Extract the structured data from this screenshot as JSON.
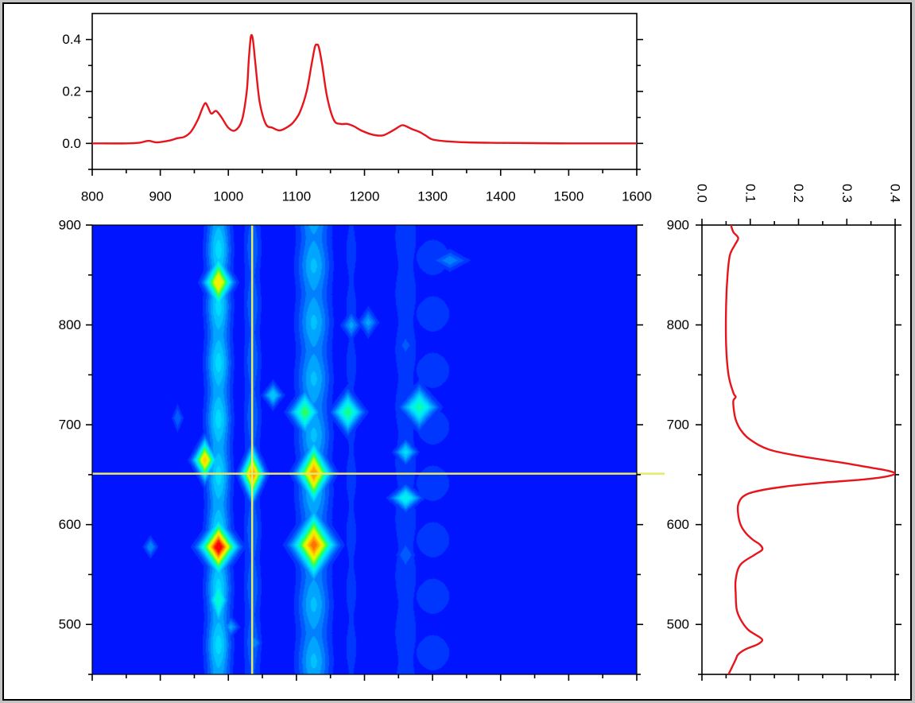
{
  "colors": {
    "trace": "#e8141b",
    "crosshair": "#e8e86a",
    "map_background": "#0014ff",
    "page_background": "#c3c3c3"
  },
  "chart_data": [
    {
      "id": "top-spectrum",
      "type": "line",
      "title": "",
      "xlabel": "",
      "ylabel": "",
      "xlim": [
        800,
        1600
      ],
      "ylim": [
        -0.1,
        0.5
      ],
      "x_ticks": [
        "800",
        "900",
        "1000",
        "1100",
        "1200",
        "1300",
        "1400",
        "1500",
        "1600"
      ],
      "y_ticks": [
        "0.0",
        "0.2",
        "0.4"
      ],
      "series": [
        {
          "x": [
            800,
            850,
            870,
            883,
            895,
            915,
            925,
            935,
            945,
            955,
            961,
            966,
            970,
            975,
            982,
            990,
            1000,
            1010,
            1020,
            1027,
            1030,
            1033,
            1036,
            1040,
            1046,
            1055,
            1065,
            1075,
            1085,
            1095,
            1105,
            1115,
            1122,
            1127,
            1130,
            1133,
            1138,
            1145,
            1155,
            1165,
            1175,
            1185,
            1195,
            1210,
            1225,
            1235,
            1245,
            1255,
            1262,
            1270,
            1280,
            1290,
            1300,
            1320,
            1350,
            1400,
            1450,
            1500,
            1600
          ],
          "y": [
            0.0,
            0.0,
            0.003,
            0.01,
            0.004,
            0.012,
            0.02,
            0.025,
            0.045,
            0.09,
            0.13,
            0.155,
            0.14,
            0.115,
            0.125,
            0.1,
            0.06,
            0.05,
            0.09,
            0.2,
            0.32,
            0.41,
            0.4,
            0.3,
            0.16,
            0.075,
            0.06,
            0.05,
            0.06,
            0.08,
            0.12,
            0.2,
            0.3,
            0.37,
            0.38,
            0.37,
            0.3,
            0.18,
            0.09,
            0.075,
            0.075,
            0.065,
            0.05,
            0.035,
            0.03,
            0.04,
            0.055,
            0.07,
            0.065,
            0.055,
            0.045,
            0.03,
            0.015,
            0.008,
            0.004,
            0.002,
            0.001,
            0.0,
            0.0
          ]
        }
      ]
    },
    {
      "id": "side-spectrum",
      "type": "line",
      "title": "",
      "xlabel": "",
      "ylabel": "",
      "xlim": [
        0.0,
        0.4
      ],
      "ylim": [
        450,
        900
      ],
      "x_ticks": [
        "0.0",
        "0.1",
        "0.2",
        "0.3",
        "0.4"
      ],
      "y_ticks": [
        "500",
        "600",
        "700",
        "800",
        "900"
      ],
      "series": [
        {
          "y": [
            900,
            893,
            887,
            880,
            870,
            850,
            820,
            780,
            750,
            732,
            728,
            724,
            715,
            705,
            695,
            685,
            675,
            668,
            662,
            657,
            654,
            651,
            648,
            645,
            642,
            638,
            633,
            628,
            620,
            610,
            600,
            592,
            585,
            580,
            575,
            570,
            560,
            545,
            530,
            515,
            505,
            495,
            490,
            487,
            484,
            480,
            475,
            470,
            465,
            460,
            455,
            450
          ],
          "x": [
            0.06,
            0.065,
            0.075,
            0.068,
            0.058,
            0.053,
            0.05,
            0.05,
            0.055,
            0.065,
            0.07,
            0.065,
            0.066,
            0.07,
            0.08,
            0.1,
            0.14,
            0.21,
            0.29,
            0.35,
            0.385,
            0.4,
            0.38,
            0.33,
            0.25,
            0.17,
            0.11,
            0.085,
            0.075,
            0.075,
            0.08,
            0.09,
            0.105,
            0.12,
            0.125,
            0.11,
            0.08,
            0.07,
            0.07,
            0.072,
            0.08,
            0.095,
            0.11,
            0.12,
            0.125,
            0.115,
            0.09,
            0.075,
            0.07,
            0.065,
            0.06,
            0.055
          ]
        }
      ]
    },
    {
      "id": "contour-map",
      "type": "heatmap",
      "title": "",
      "xlabel": "",
      "ylabel": "",
      "xlim": [
        800,
        1600
      ],
      "ylim": [
        450,
        900
      ],
      "y_ticks": [
        "500",
        "600",
        "700",
        "800",
        "900"
      ],
      "crosshair": {
        "x": 1035,
        "y": 651
      },
      "ridges": [
        {
          "x": 985,
          "width": 12,
          "level": 0.32
        },
        {
          "x": 1125,
          "width": 16,
          "level": 0.26
        },
        {
          "x": 1035,
          "width": 9,
          "level": 0.14
        },
        {
          "x": 1180,
          "width": 9,
          "level": 0.07
        },
        {
          "x": 1260,
          "width": 14,
          "level": 0.09
        },
        {
          "x": 1300,
          "width": 40,
          "level": 0.06
        },
        {
          "x": 925,
          "width": 7,
          "level": 0.05
        },
        {
          "x": 1070,
          "width": 9,
          "level": 0.05
        }
      ],
      "peaks": [
        {
          "x": 985,
          "y": 578,
          "value": 1.0,
          "sx": 14,
          "sy": 14
        },
        {
          "x": 985,
          "y": 843,
          "value": 0.75,
          "sx": 11,
          "sy": 14
        },
        {
          "x": 985,
          "y": 525,
          "value": 0.45,
          "sx": 8,
          "sy": 16
        },
        {
          "x": 965,
          "y": 665,
          "value": 0.78,
          "sx": 9,
          "sy": 11
        },
        {
          "x": 1035,
          "y": 651,
          "value": 0.86,
          "sx": 9,
          "sy": 14
        },
        {
          "x": 1125,
          "y": 652,
          "value": 0.85,
          "sx": 13,
          "sy": 16
        },
        {
          "x": 1125,
          "y": 580,
          "value": 0.88,
          "sx": 16,
          "sy": 17
        },
        {
          "x": 1112,
          "y": 713,
          "value": 0.52,
          "sx": 12,
          "sy": 12
        },
        {
          "x": 1175,
          "y": 713,
          "value": 0.5,
          "sx": 12,
          "sy": 11
        },
        {
          "x": 1280,
          "y": 718,
          "value": 0.46,
          "sx": 14,
          "sy": 11
        },
        {
          "x": 1065,
          "y": 730,
          "value": 0.3,
          "sx": 8,
          "sy": 7
        },
        {
          "x": 1260,
          "y": 673,
          "value": 0.32,
          "sx": 9,
          "sy": 7
        },
        {
          "x": 1260,
          "y": 627,
          "value": 0.4,
          "sx": 12,
          "sy": 7
        },
        {
          "x": 1180,
          "y": 800,
          "value": 0.22,
          "sx": 8,
          "sy": 8
        },
        {
          "x": 1205,
          "y": 803,
          "value": 0.22,
          "sx": 8,
          "sy": 8
        },
        {
          "x": 1325,
          "y": 865,
          "value": 0.18,
          "sx": 16,
          "sy": 6
        },
        {
          "x": 885,
          "y": 578,
          "value": 0.2,
          "sx": 6,
          "sy": 6
        },
        {
          "x": 925,
          "y": 707,
          "value": 0.15,
          "sx": 5,
          "sy": 8
        },
        {
          "x": 1003,
          "y": 498,
          "value": 0.22,
          "sx": 7,
          "sy": 6
        },
        {
          "x": 1038,
          "y": 482,
          "value": 0.2,
          "sx": 6,
          "sy": 6
        },
        {
          "x": 1260,
          "y": 780,
          "value": 0.12,
          "sx": 8,
          "sy": 9
        },
        {
          "x": 1260,
          "y": 570,
          "value": 0.15,
          "sx": 8,
          "sy": 9
        }
      ]
    }
  ]
}
